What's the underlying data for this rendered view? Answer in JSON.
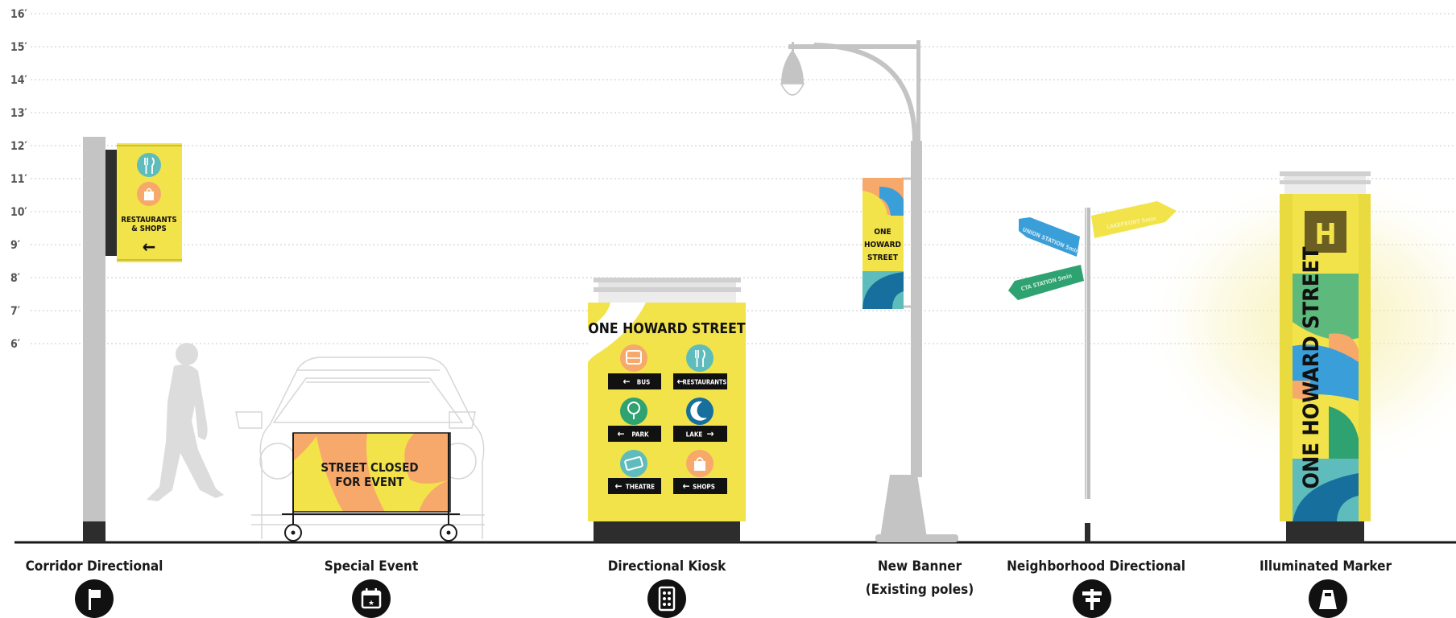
{
  "height_scale": {
    "ticks": [
      "16′",
      "15′",
      "14′",
      "13′",
      "12′",
      "11′",
      "10′",
      "9′",
      "8′",
      "7′",
      "6′"
    ]
  },
  "signs": [
    {
      "id": "corridor",
      "caption": "Corridor Directional",
      "caption2": "",
      "icon": "flag-icon"
    },
    {
      "id": "event",
      "caption": "Special Event",
      "caption2": "",
      "icon": "calendar-star-icon"
    },
    {
      "id": "kiosk",
      "caption": "Directional Kiosk",
      "caption2": "",
      "icon": "kiosk-grid-icon"
    },
    {
      "id": "banner",
      "caption": "New Banner",
      "caption2": "(Existing poles)",
      "icon": ""
    },
    {
      "id": "neighborhood",
      "caption": "Neighborhood Directional",
      "caption2": "",
      "icon": "fingerpost-icon"
    },
    {
      "id": "marker",
      "caption": "Illuminated Marker",
      "caption2": "",
      "icon": "pylon-icon"
    }
  ],
  "corridor_sign": {
    "line1": "RESTAURANTS",
    "line2": "& SHOPS",
    "arrow": "←"
  },
  "event_sign": {
    "line1": "STREET CLOSED",
    "line2": "FOR EVENT"
  },
  "kiosk": {
    "title": "ONE HOWARD STREET",
    "items": [
      {
        "label": "BUS",
        "dir": "left",
        "icon": "bus-icon"
      },
      {
        "label": "RESTAURANTS",
        "dir": "left",
        "icon": "fork-knife-icon"
      },
      {
        "label": "PARK",
        "dir": "left",
        "icon": "tree-icon"
      },
      {
        "label": "LAKE",
        "dir": "right",
        "icon": "wave-icon"
      },
      {
        "label": "THEATRE",
        "dir": "left",
        "icon": "ticket-icon"
      },
      {
        "label": "SHOPS",
        "dir": "left",
        "icon": "shopping-bag-icon"
      }
    ]
  },
  "banner": {
    "line1": "ONE",
    "line2": "HOWARD",
    "line3": "STREET"
  },
  "fingerposts": {
    "blue": "UNION STATION 5min",
    "green": "CTA STATION 5min",
    "yellow": "LAKEFRONT 5min"
  },
  "marker": {
    "logo": "H",
    "text": "ONE HOWARD STREET"
  },
  "colors": {
    "yellow": "#f2e34a",
    "orange": "#f7a86b",
    "blue": "#3a9ed8",
    "teal": "#5fbcbc",
    "navy": "#166f9c",
    "green": "#2fa271",
    "dark": "#2d2d2d",
    "pole": "#c4c4c4"
  }
}
